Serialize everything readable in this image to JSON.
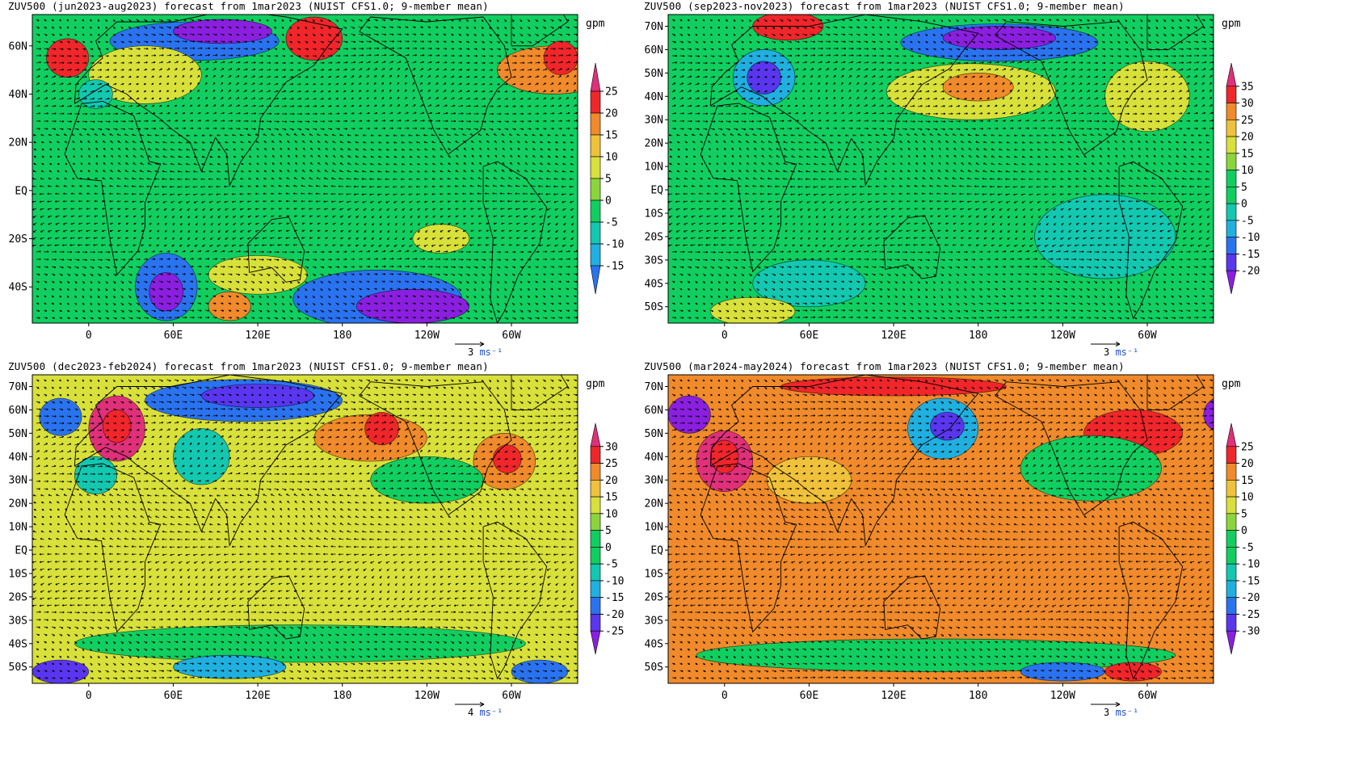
{
  "colors": {
    "scale": [
      "#8b1fe0",
      "#5a36f0",
      "#2a73f0",
      "#1fb0e0",
      "#12c8b0",
      "#10cf60",
      "#8ad63a",
      "#d8e03a",
      "#f0c13a",
      "#f08a2a",
      "#f0262a",
      "#e0307a"
    ],
    "ref_arrow_unit_color": "#1f4fd6"
  },
  "panels": [
    {
      "id": "p1",
      "title": "ZUV500 (jun2023-aug2023) forecast from 1mar2023 (NUIST CFS1.0; 9-member mean)",
      "unit": "gpm",
      "lat_labels": [
        "60N",
        "40N",
        "20N",
        "EQ",
        "20S",
        "40S"
      ],
      "lon_labels": [
        "0",
        "60E",
        "120E",
        "180",
        "120W",
        "60W"
      ],
      "colorbar_labels": [
        "25",
        "20",
        "15",
        "10",
        "5",
        "0",
        "-5",
        "-10",
        "-15"
      ],
      "ref_arrow": {
        "value": "3",
        "unit": "ms⁻¹"
      },
      "background_level": 5,
      "blobs": [
        {
          "lon": 75,
          "lat": 62,
          "rx": 60,
          "ry": 8,
          "level": 2
        },
        {
          "lon": 95,
          "lat": 66,
          "rx": 35,
          "ry": 5,
          "level": 0
        },
        {
          "lon": 40,
          "lat": 48,
          "rx": 40,
          "ry": 12,
          "level": 7
        },
        {
          "lon": 330,
          "lat": 50,
          "rx": 40,
          "ry": 10,
          "level": 9
        },
        {
          "lon": 335,
          "lat": 55,
          "rx": 12,
          "ry": 7,
          "level": 10
        },
        {
          "lon": -15,
          "lat": 55,
          "rx": 15,
          "ry": 8,
          "level": 10
        },
        {
          "lon": 160,
          "lat": 63,
          "rx": 20,
          "ry": 9,
          "level": 10
        },
        {
          "lon": 5,
          "lat": 40,
          "rx": 12,
          "ry": 6,
          "level": 4
        },
        {
          "lon": 55,
          "lat": -40,
          "rx": 22,
          "ry": 14,
          "level": 2
        },
        {
          "lon": 55,
          "lat": -42,
          "rx": 12,
          "ry": 8,
          "level": 0
        },
        {
          "lon": 205,
          "lat": -45,
          "rx": 60,
          "ry": 12,
          "level": 2
        },
        {
          "lon": 230,
          "lat": -48,
          "rx": 40,
          "ry": 7,
          "level": 0
        },
        {
          "lon": 120,
          "lat": -35,
          "rx": 35,
          "ry": 8,
          "level": 7
        },
        {
          "lon": 250,
          "lat": -20,
          "rx": 20,
          "ry": 6,
          "level": 7
        },
        {
          "lon": 100,
          "lat": -48,
          "rx": 15,
          "ry": 6,
          "level": 9
        }
      ]
    },
    {
      "id": "p2",
      "title": "ZUV500 (sep2023-nov2023) forecast from 1mar2023 (NUIST CFS1.0; 9-member mean)",
      "unit": "gpm",
      "lat_labels": [
        "70N",
        "60N",
        "50N",
        "40N",
        "30N",
        "20N",
        "10N",
        "EQ",
        "10S",
        "20S",
        "30S",
        "40S",
        "50S"
      ],
      "lon_labels": [
        "0",
        "60E",
        "120E",
        "180",
        "120W",
        "60W"
      ],
      "colorbar_labels": [
        "35",
        "30",
        "25",
        "20",
        "15",
        "10",
        "5",
        "0",
        "-5",
        "-10",
        "-15",
        "-20"
      ],
      "ref_arrow": {
        "value": "3",
        "unit": "ms⁻¹"
      },
      "background_level": 5,
      "blobs": [
        {
          "lon": 28,
          "lat": 48,
          "rx": 22,
          "ry": 12,
          "level": 3
        },
        {
          "lon": 28,
          "lat": 48,
          "rx": 12,
          "ry": 7,
          "level": 1
        },
        {
          "lon": 195,
          "lat": 63,
          "rx": 70,
          "ry": 8,
          "level": 2
        },
        {
          "lon": 195,
          "lat": 65,
          "rx": 40,
          "ry": 5,
          "level": 0
        },
        {
          "lon": 175,
          "lat": 42,
          "rx": 60,
          "ry": 12,
          "level": 7
        },
        {
          "lon": 180,
          "lat": 44,
          "rx": 25,
          "ry": 6,
          "level": 9
        },
        {
          "lon": 45,
          "lat": 70,
          "rx": 25,
          "ry": 6,
          "level": 10
        },
        {
          "lon": 270,
          "lat": -20,
          "rx": 50,
          "ry": 18,
          "level": 4
        },
        {
          "lon": 60,
          "lat": -40,
          "rx": 40,
          "ry": 10,
          "level": 4
        },
        {
          "lon": 20,
          "lat": -52,
          "rx": 30,
          "ry": 6,
          "level": 7
        },
        {
          "lon": 300,
          "lat": 40,
          "rx": 30,
          "ry": 15,
          "level": 7
        }
      ]
    },
    {
      "id": "p3",
      "title": "ZUV500 (dec2023-feb2024) forecast from 1mar2023 (NUIST CFS1.0; 9-member mean)",
      "unit": "gpm",
      "lat_labels": [
        "70N",
        "60N",
        "50N",
        "40N",
        "30N",
        "20N",
        "10N",
        "EQ",
        "10S",
        "20S",
        "30S",
        "40S",
        "50S"
      ],
      "lon_labels": [
        "0",
        "60E",
        "120E",
        "180",
        "120W",
        "60W"
      ],
      "colorbar_labels": [
        "30",
        "25",
        "20",
        "15",
        "10",
        "5",
        "0",
        "-5",
        "-10",
        "-15",
        "-20",
        "-25"
      ],
      "ref_arrow": {
        "value": "4",
        "unit": "ms⁻¹"
      },
      "background_level": 7,
      "blobs": [
        {
          "lon": 20,
          "lat": 52,
          "rx": 20,
          "ry": 14,
          "level": 11
        },
        {
          "lon": 20,
          "lat": 53,
          "rx": 10,
          "ry": 7,
          "level": 10
        },
        {
          "lon": 110,
          "lat": 64,
          "rx": 70,
          "ry": 9,
          "level": 2
        },
        {
          "lon": 120,
          "lat": 66,
          "rx": 40,
          "ry": 5,
          "level": 1
        },
        {
          "lon": 200,
          "lat": 48,
          "rx": 40,
          "ry": 10,
          "level": 9
        },
        {
          "lon": 208,
          "lat": 52,
          "rx": 12,
          "ry": 7,
          "level": 10
        },
        {
          "lon": 295,
          "lat": 38,
          "rx": 22,
          "ry": 12,
          "level": 9
        },
        {
          "lon": 297,
          "lat": 39,
          "rx": 10,
          "ry": 6,
          "level": 10
        },
        {
          "lon": -20,
          "lat": 57,
          "rx": 15,
          "ry": 8,
          "level": 2
        },
        {
          "lon": 5,
          "lat": 32,
          "rx": 15,
          "ry": 8,
          "level": 4
        },
        {
          "lon": 80,
          "lat": 40,
          "rx": 20,
          "ry": 12,
          "level": 4
        },
        {
          "lon": 150,
          "lat": -40,
          "rx": 160,
          "ry": 8,
          "level": 5
        },
        {
          "lon": 100,
          "lat": -50,
          "rx": 40,
          "ry": 5,
          "level": 3
        },
        {
          "lon": -20,
          "lat": -52,
          "rx": 20,
          "ry": 5,
          "level": 1
        },
        {
          "lon": 320,
          "lat": -52,
          "rx": 20,
          "ry": 5,
          "level": 2
        },
        {
          "lon": 240,
          "lat": 30,
          "rx": 40,
          "ry": 10,
          "level": 5
        }
      ]
    },
    {
      "id": "p4",
      "title": "ZUV500 (mar2024-may2024) forecast from 1mar2023 (NUIST CFS1.0; 9-member mean)",
      "unit": "gpm",
      "lat_labels": [
        "70N",
        "60N",
        "50N",
        "40N",
        "30N",
        "20N",
        "10N",
        "EQ",
        "10S",
        "20S",
        "30S",
        "40S",
        "50S"
      ],
      "lon_labels": [
        "0",
        "60E",
        "120E",
        "180",
        "120W",
        "60W"
      ],
      "colorbar_labels": [
        "25",
        "20",
        "15",
        "10",
        "5",
        "0",
        "-5",
        "-10",
        "-15",
        "-20",
        "-25",
        "-30"
      ],
      "ref_arrow": {
        "value": "3",
        "unit": "ms⁻¹"
      },
      "background_level": 9,
      "blobs": [
        {
          "lon": 0,
          "lat": 38,
          "rx": 20,
          "ry": 13,
          "level": 11
        },
        {
          "lon": 0,
          "lat": 40,
          "rx": 10,
          "ry": 7,
          "level": 10
        },
        {
          "lon": 155,
          "lat": 52,
          "rx": 25,
          "ry": 13,
          "level": 3
        },
        {
          "lon": 158,
          "lat": 53,
          "rx": 12,
          "ry": 6,
          "level": 1
        },
        {
          "lon": 290,
          "lat": 50,
          "rx": 35,
          "ry": 10,
          "level": 10
        },
        {
          "lon": -25,
          "lat": 58,
          "rx": 15,
          "ry": 8,
          "level": 0
        },
        {
          "lon": 355,
          "lat": 58,
          "rx": 15,
          "ry": 8,
          "level": 0
        },
        {
          "lon": 150,
          "lat": -45,
          "rx": 170,
          "ry": 7,
          "level": 5
        },
        {
          "lon": 240,
          "lat": -52,
          "rx": 30,
          "ry": 4,
          "level": 2
        },
        {
          "lon": 290,
          "lat": -52,
          "rx": 20,
          "ry": 4,
          "level": 10
        },
        {
          "lon": 120,
          "lat": 70,
          "rx": 80,
          "ry": 4,
          "level": 10
        },
        {
          "lon": 260,
          "lat": 35,
          "rx": 50,
          "ry": 14,
          "level": 5
        },
        {
          "lon": 60,
          "lat": 30,
          "rx": 30,
          "ry": 10,
          "level": 8
        }
      ]
    }
  ]
}
